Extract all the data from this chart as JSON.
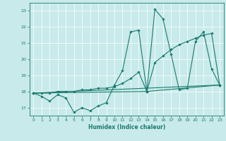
{
  "xlabel": "Humidex (Indice chaleur)",
  "background_color": "#c8eaea",
  "line_color": "#1a7a6e",
  "grid_color": "#ffffff",
  "xlim": [
    -0.5,
    23.5
  ],
  "ylim": [
    16.5,
    23.5
  ],
  "yticks": [
    17,
    18,
    19,
    20,
    21,
    22,
    23
  ],
  "xticks": [
    0,
    1,
    2,
    3,
    4,
    5,
    6,
    7,
    8,
    9,
    10,
    11,
    12,
    13,
    14,
    15,
    16,
    17,
    18,
    19,
    20,
    21,
    22,
    23
  ],
  "series1_x": [
    0,
    1,
    2,
    3,
    4,
    5,
    6,
    7,
    8,
    9,
    10,
    11,
    12,
    13,
    14,
    15,
    16,
    17,
    18,
    19,
    20,
    21,
    22,
    23
  ],
  "series1_y": [
    17.9,
    17.7,
    17.4,
    17.8,
    17.6,
    16.7,
    17.0,
    16.8,
    17.1,
    17.3,
    18.4,
    19.3,
    21.7,
    21.8,
    18.0,
    23.1,
    22.5,
    20.3,
    18.1,
    18.2,
    21.1,
    21.7,
    19.4,
    18.4
  ],
  "series2_x": [
    0,
    1,
    2,
    3,
    4,
    5,
    6,
    7,
    8,
    9,
    10,
    11,
    12,
    13,
    14,
    15,
    16,
    17,
    18,
    19,
    20,
    21,
    22,
    23
  ],
  "series2_y": [
    17.9,
    17.9,
    17.9,
    18.0,
    18.0,
    18.0,
    18.1,
    18.1,
    18.2,
    18.2,
    18.3,
    18.5,
    18.8,
    19.2,
    18.0,
    19.8,
    20.2,
    20.6,
    20.9,
    21.1,
    21.3,
    21.5,
    21.6,
    18.4
  ],
  "series3_x": [
    0,
    14,
    23
  ],
  "series3_y": [
    17.9,
    18.0,
    18.4
  ],
  "series4_x": [
    0,
    23
  ],
  "series4_y": [
    17.9,
    18.4
  ]
}
